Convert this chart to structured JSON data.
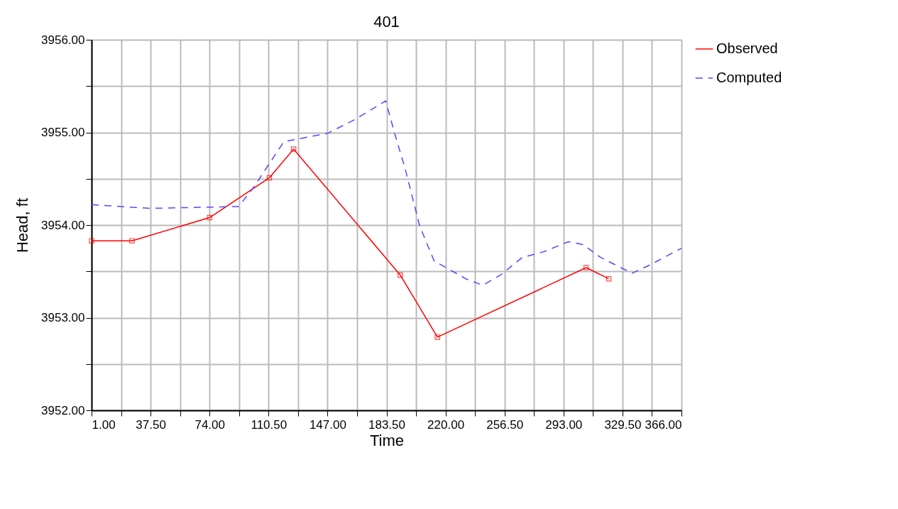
{
  "chart_data": {
    "type": "line",
    "title": "401",
    "xlabel": "Time",
    "ylabel": "Head, ft",
    "xlim": [
      1,
      366
    ],
    "ylim": [
      3952,
      3956
    ],
    "xticks": [
      {
        "value": 1,
        "label": "1.00"
      },
      {
        "value": 19.25,
        "label": null
      },
      {
        "value": 37.5,
        "label": "37.50"
      },
      {
        "value": 55.75,
        "label": null
      },
      {
        "value": 74,
        "label": "74.00"
      },
      {
        "value": 92.25,
        "label": null
      },
      {
        "value": 110.5,
        "label": "110.50"
      },
      {
        "value": 128.75,
        "label": null
      },
      {
        "value": 147,
        "label": "147.00"
      },
      {
        "value": 165.25,
        "label": null
      },
      {
        "value": 183.5,
        "label": "183.50"
      },
      {
        "value": 201.75,
        "label": null
      },
      {
        "value": 220,
        "label": "220.00"
      },
      {
        "value": 238.25,
        "label": null
      },
      {
        "value": 256.5,
        "label": "256.50"
      },
      {
        "value": 274.75,
        "label": null
      },
      {
        "value": 293,
        "label": "293.00"
      },
      {
        "value": 311.25,
        "label": null
      },
      {
        "value": 329.5,
        "label": "329.50"
      },
      {
        "value": 347.75,
        "label": null
      },
      {
        "value": 366,
        "label": "366.00"
      }
    ],
    "yticks": [
      {
        "value": 3952,
        "label": "3952.00"
      },
      {
        "value": 3952.5,
        "label": null
      },
      {
        "value": 3953,
        "label": "3953.00"
      },
      {
        "value": 3953.5,
        "label": null
      },
      {
        "value": 3954,
        "label": "3954.00"
      },
      {
        "value": 3954.5,
        "label": null
      },
      {
        "value": 3955,
        "label": "3955.00"
      },
      {
        "value": 3955.5,
        "label": null
      },
      {
        "value": 3956,
        "label": "3956.00"
      }
    ],
    "grid": true,
    "legend": "top right",
    "series": [
      {
        "name": "Observed",
        "color": "#ff0000",
        "marker": "square",
        "line_style": "solid",
        "x": [
          1,
          26,
          74,
          111,
          126,
          192,
          215,
          307,
          321
        ],
        "values": [
          3953.83,
          3953.83,
          3954.08,
          3954.51,
          3954.82,
          3953.46,
          3952.79,
          3953.54,
          3953.42
        ]
      },
      {
        "name": "Computed",
        "color": "#6040ff",
        "marker": "none",
        "line_style": "dashed",
        "x": [
          1,
          28,
          37,
          92,
          101,
          120,
          129,
          147,
          164,
          183,
          188.5,
          195,
          204,
          213,
          221.5,
          232.5,
          243,
          254,
          267.5,
          280.5,
          296,
          305,
          316,
          335.5,
          346.5,
          366
        ],
        "values": [
          3954.22,
          3954.19,
          3954.18,
          3954.2,
          3954.4,
          3954.9,
          3954.93,
          3954.99,
          3955.14,
          3955.34,
          3954.99,
          3954.61,
          3953.99,
          3953.61,
          3953.53,
          3953.42,
          3953.35,
          3953.46,
          3953.65,
          3953.71,
          3953.82,
          3953.79,
          3953.65,
          3953.48,
          3953.57,
          3953.75
        ]
      }
    ]
  }
}
